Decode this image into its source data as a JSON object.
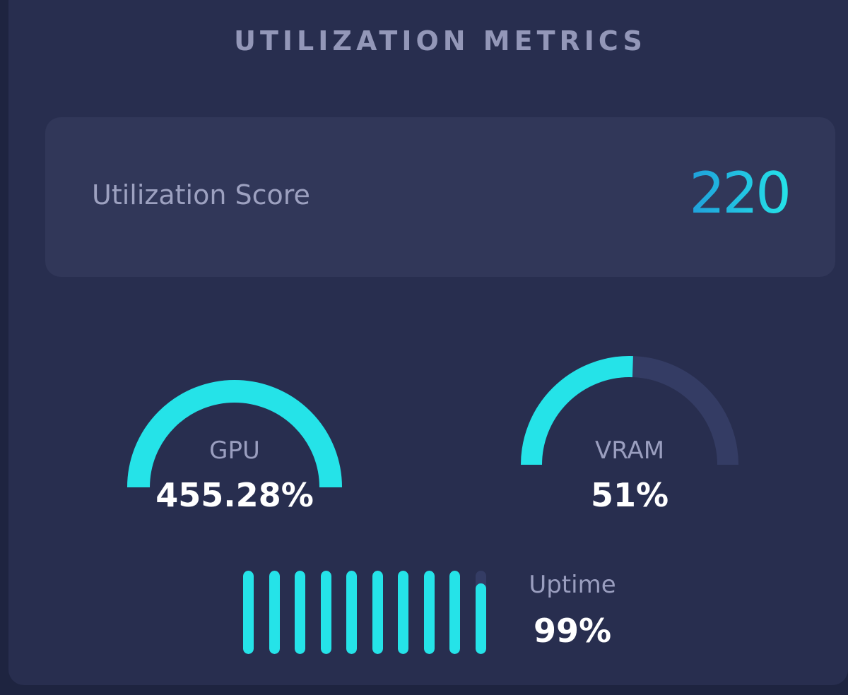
{
  "header": {
    "title": "UTILIZATION METRICS"
  },
  "score": {
    "label": "Utilization Score",
    "value": "220"
  },
  "gauges": {
    "gpu": {
      "label": "GPU",
      "value": "455.28%",
      "fraction": 1.0
    },
    "vram": {
      "label": "VRAM",
      "value": "51%",
      "fraction": 0.51
    }
  },
  "uptime": {
    "label": "Uptime",
    "value": "99%",
    "fraction": 0.99,
    "bar_count": 10
  },
  "colors": {
    "accent": "#25e3e8",
    "track": "#343c64",
    "background": "#282e4f",
    "card": "#313759"
  }
}
